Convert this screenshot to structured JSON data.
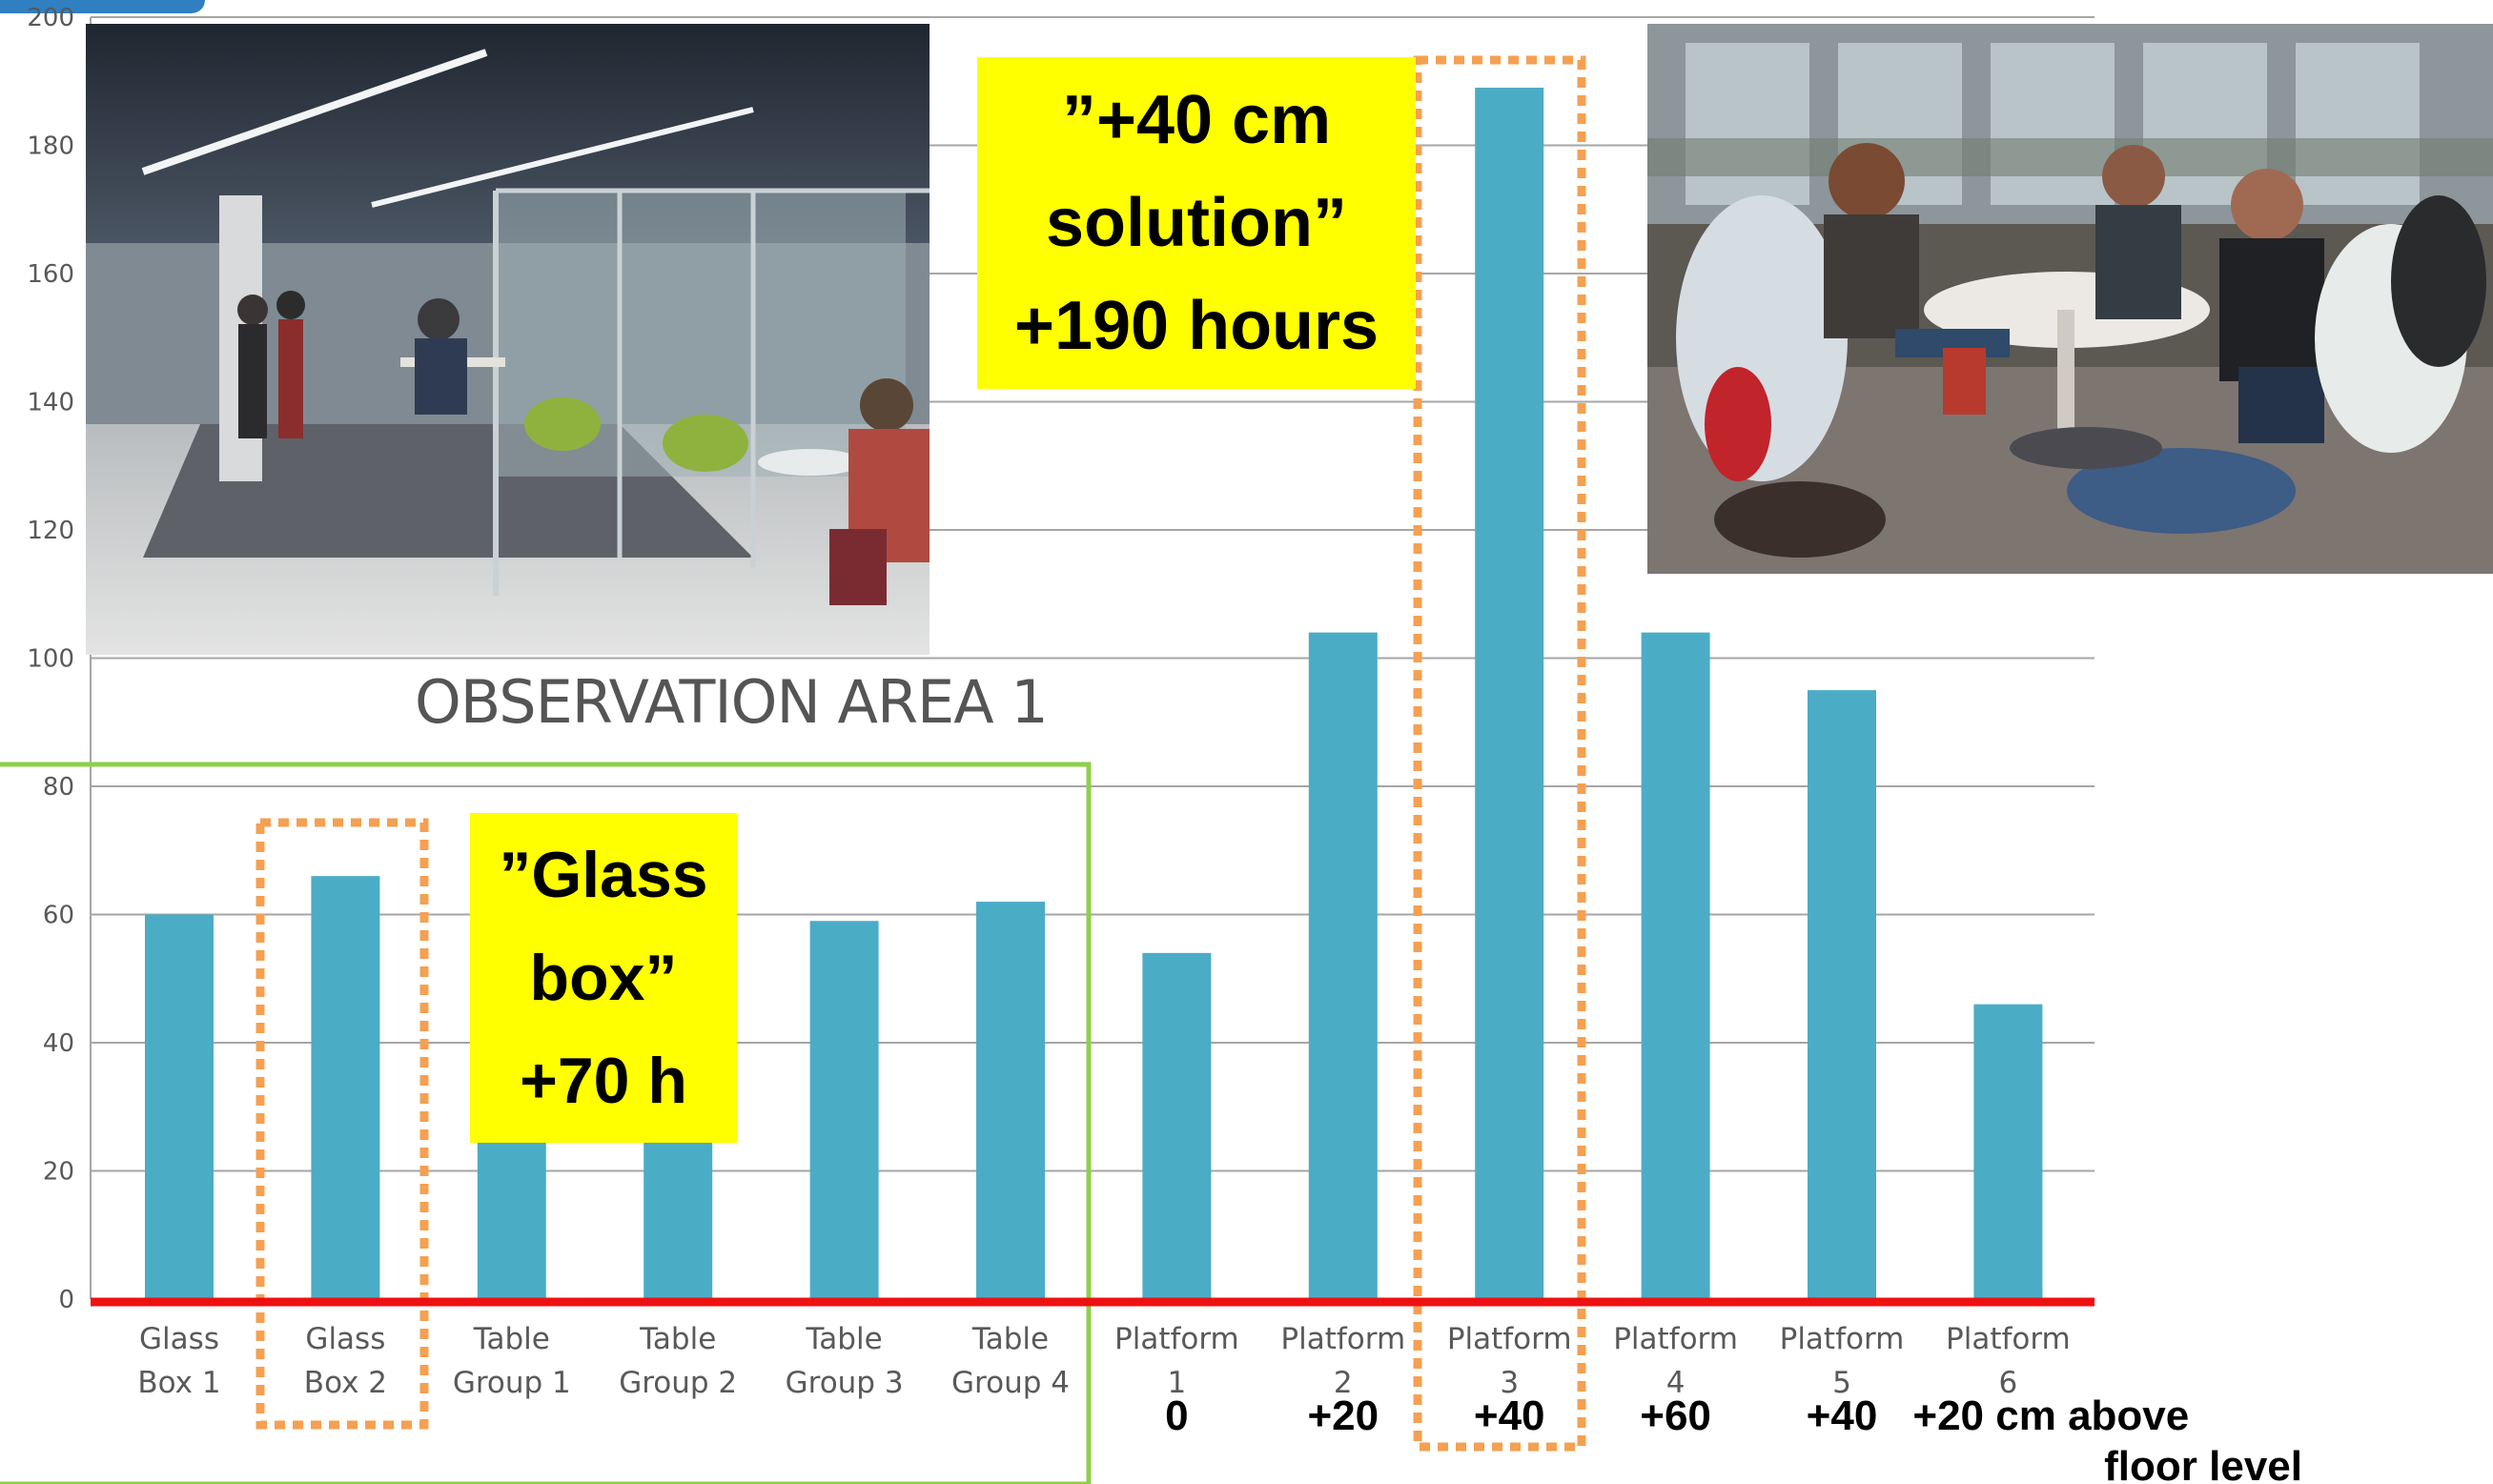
{
  "chart_data": {
    "type": "bar",
    "title": "",
    "xlabel": "",
    "ylabel": "",
    "ylim": [
      0,
      200
    ],
    "yticks": [
      0,
      20,
      40,
      60,
      80,
      100,
      120,
      140,
      160,
      180,
      200
    ],
    "grid": true,
    "categories": [
      "Glass Box 1",
      "Glass Box 2",
      "Table Group 1",
      "Table Group 2",
      "Table Group 3",
      "Table Group 4",
      "Platform 1",
      "Platform 2",
      "Platform 3",
      "Platform 4",
      "Platform 5",
      "Platform 6"
    ],
    "category_lines": [
      [
        "Glass",
        "Box 1"
      ],
      [
        "Glass",
        "Box 2"
      ],
      [
        "Table",
        "Group 1"
      ],
      [
        "Table",
        "Group 2"
      ],
      [
        "Table",
        "Group 3"
      ],
      [
        "Table",
        "Group 4"
      ],
      [
        "Platform",
        "1"
      ],
      [
        "Platform",
        "2"
      ],
      [
        "Platform",
        "3"
      ],
      [
        "Platform",
        "4"
      ],
      [
        "Platform",
        "5"
      ],
      [
        "Platform",
        "6"
      ]
    ],
    "values": [
      60,
      66,
      50,
      50,
      59,
      62,
      54,
      104,
      189,
      104,
      95,
      46
    ],
    "bar_color": "#4bacc6",
    "platform_heights": [
      "0",
      "+20",
      "+40",
      "+60",
      "+40",
      "+20 cm above"
    ],
    "platform_heights_suffix": "floor level",
    "annotations": {
      "area_title": "OBSERVATION AREA 1",
      "callout_platform": [
        "”+40 cm",
        "solution”",
        "+190 hours"
      ],
      "callout_glass": [
        "”Glass",
        "box”",
        "+70 h"
      ],
      "callout_color": "#ffff00",
      "highlight_color": "#f5a052",
      "area_frame_color": "#8dd04a",
      "baseline_color": "#ee1111"
    }
  }
}
